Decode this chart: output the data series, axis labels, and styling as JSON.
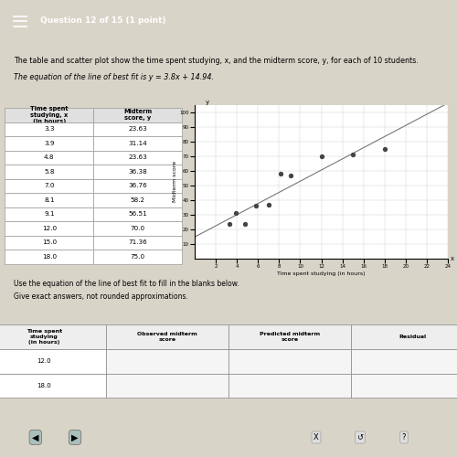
{
  "title_header": "Question 12 of 15 (1 point)",
  "description1": "The table and scatter plot show the time spent studying, x, and the midterm score, y, for each of 10 students.",
  "description2": "The equation of the line of best fit is y = 3.8x + 14.94.",
  "table_headers": [
    "Time spent\nstudying, x\n(in hours)",
    "Midterm\nscore, y"
  ],
  "table_data": [
    [
      3.3,
      23.63
    ],
    [
      3.9,
      31.14
    ],
    [
      4.8,
      23.63
    ],
    [
      5.8,
      36.38
    ],
    [
      7.0,
      36.76
    ],
    [
      8.1,
      58.2
    ],
    [
      9.1,
      56.51
    ],
    [
      12.0,
      70.0
    ],
    [
      15.0,
      71.36
    ],
    [
      18.0,
      75.0
    ]
  ],
  "scatter_xlabel": "Time spent studying (in hours)",
  "scatter_ylabel": "Midterm score",
  "scatter_color": "#444444",
  "line_color": "#777777",
  "line_slope": 3.8,
  "line_intercept": 14.94,
  "x_axis_min": 0,
  "x_axis_max": 24,
  "y_axis_min": 0,
  "y_axis_max": 100,
  "y_axis_ticks": [
    10,
    20,
    30,
    40,
    50,
    60,
    70,
    80,
    90,
    100
  ],
  "x_axis_ticks": [
    2,
    4,
    6,
    8,
    10,
    12,
    14,
    16,
    18,
    20,
    22,
    24
  ],
  "instructions1": "Use the equation of the line of best fit to fill in the blanks below.",
  "instructions2": "Give exact answers, not rounded approximations.",
  "table2_headers": [
    "Time spent\nstudying\n(in hours)",
    "Observed midterm\nscore",
    "Predicted midterm\nscore",
    "Residual"
  ],
  "table2_rows": [
    "12.0",
    "18.0"
  ],
  "bg_color": "#d8d4c8",
  "header_bg": "#3d6b5e",
  "header_text_color": "#ffffff"
}
